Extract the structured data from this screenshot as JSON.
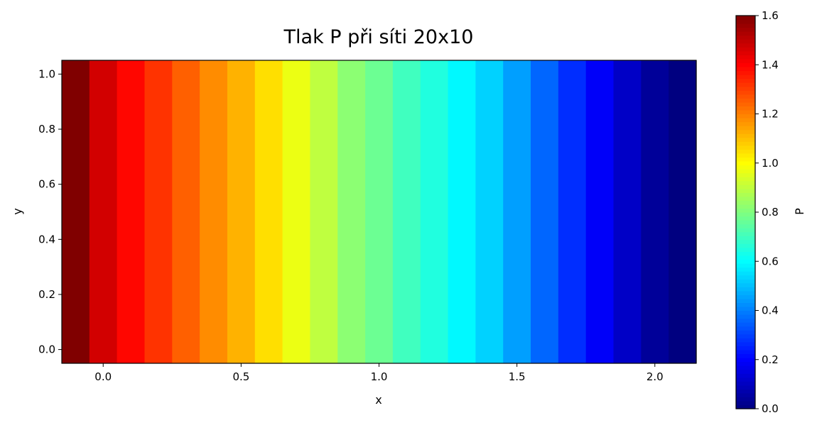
{
  "chart_data": {
    "type": "heatmap",
    "title": "Tlak P při síti 20x10",
    "xlabel": "x",
    "ylabel": "y",
    "colorbar_label": "P",
    "colormap": "jet",
    "grid": false,
    "xlim": [
      -0.15,
      2.15
    ],
    "ylim": [
      -0.05,
      1.05
    ],
    "clim": [
      0.0,
      1.6
    ],
    "x_ticks": [
      0.0,
      0.5,
      1.0,
      1.5,
      2.0
    ],
    "x_tick_labels": [
      "0.0",
      "0.5",
      "1.0",
      "1.5",
      "2.0"
    ],
    "y_ticks": [
      0.0,
      0.2,
      0.4,
      0.6,
      0.8,
      1.0
    ],
    "y_tick_labels": [
      "0.0",
      "0.2",
      "0.4",
      "0.6",
      "0.8",
      "1.0"
    ],
    "colorbar_ticks": [
      0.0,
      0.2,
      0.4,
      0.6,
      0.8,
      1.0,
      1.2,
      1.4,
      1.6
    ],
    "colorbar_tick_labels": [
      "0.0",
      "0.2",
      "0.4",
      "0.6",
      "0.8",
      "1.0",
      "1.2",
      "1.4",
      "1.6"
    ],
    "x": [
      -0.1,
      0.0,
      0.1,
      0.2,
      0.3,
      0.4,
      0.5,
      0.6,
      0.7,
      0.8,
      0.9,
      1.0,
      1.1,
      1.2,
      1.3,
      1.4,
      1.5,
      1.6,
      1.7,
      1.8,
      1.9,
      2.0,
      2.1
    ],
    "values": [
      1.6,
      1.47,
      1.39,
      1.32,
      1.25,
      1.18,
      1.12,
      1.05,
      0.97,
      0.9,
      0.82,
      0.77,
      0.7,
      0.65,
      0.59,
      0.53,
      0.45,
      0.36,
      0.27,
      0.19,
      0.11,
      0.04,
      0.0
    ]
  }
}
